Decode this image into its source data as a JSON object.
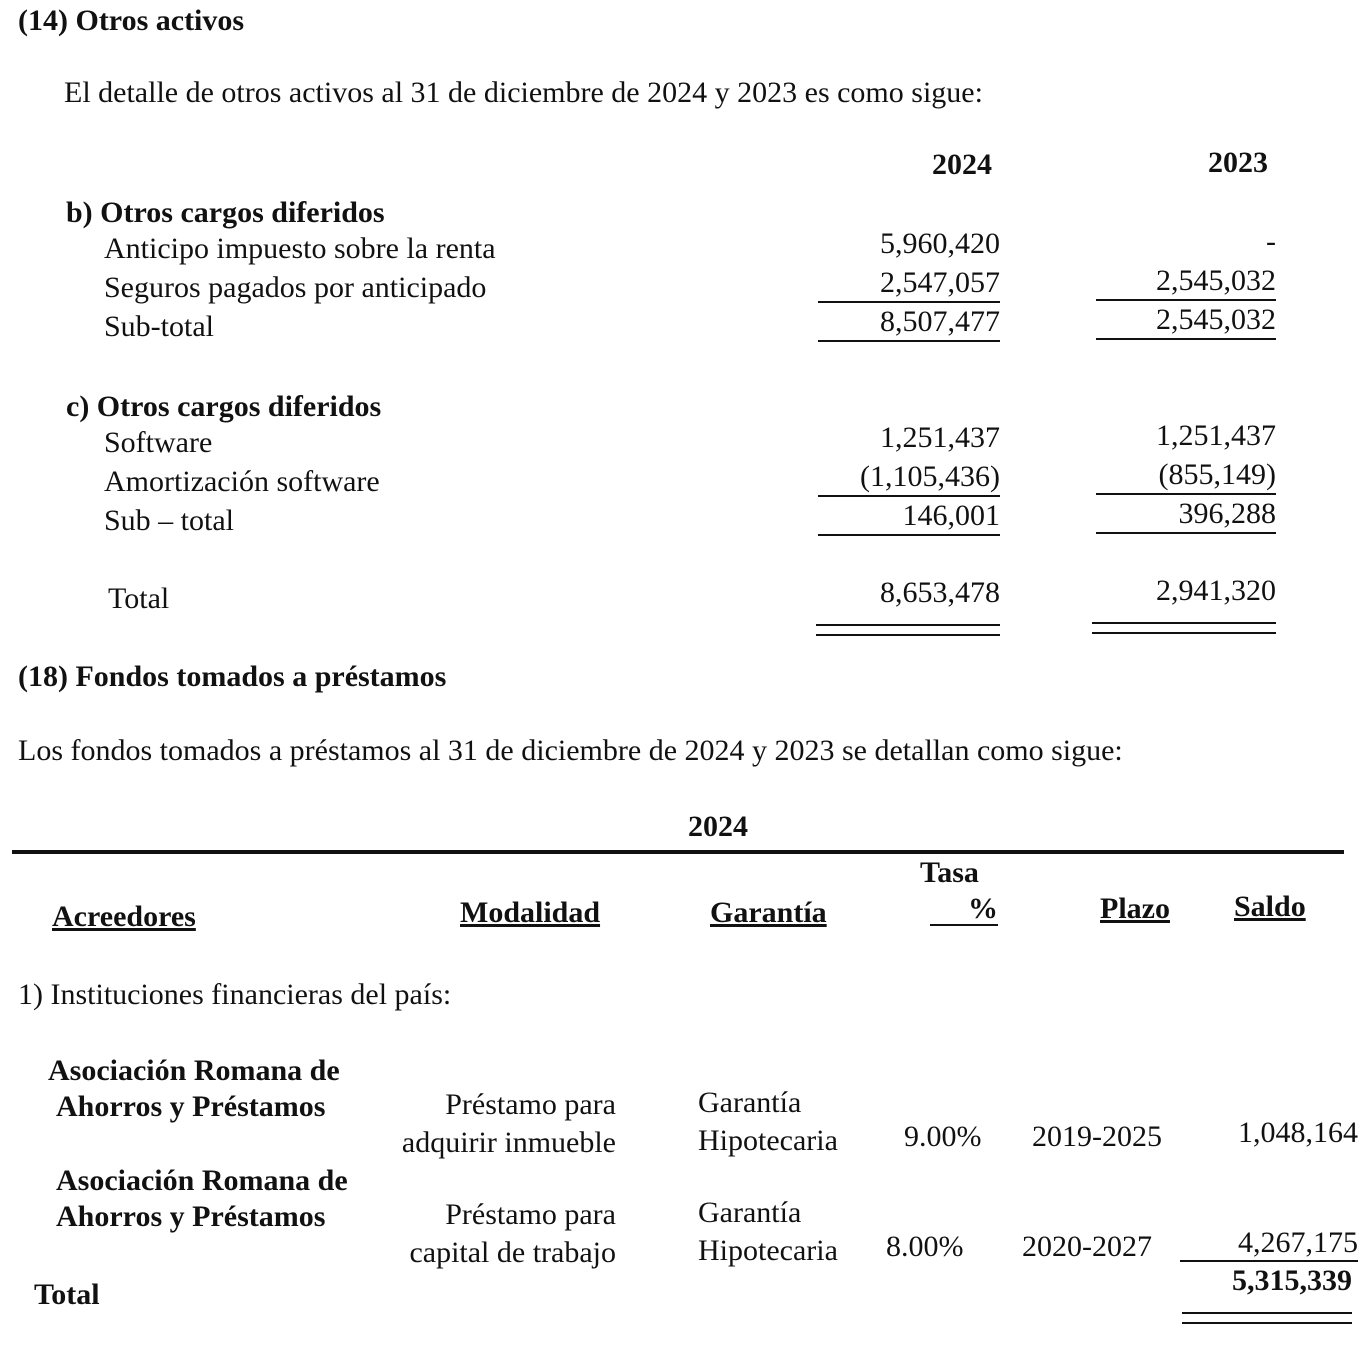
{
  "s14": {
    "title": "(14) Otros activos",
    "intro": "El detalle de otros activos al 31 de diciembre de 2024 y 2023 es como sigue:",
    "col_2024": "2024",
    "col_2023": "2023",
    "b_title": "b) Otros cargos diferidos",
    "b_rows": [
      {
        "label": "Anticipo impuesto sobre la renta",
        "v2024": "5,960,420",
        "v2023": "-"
      },
      {
        "label": "Seguros pagados por anticipado",
        "v2024": "2,547,057",
        "v2023": "2,545,032"
      },
      {
        "label": "Sub-total",
        "v2024": "8,507,477",
        "v2023": "2,545,032"
      }
    ],
    "c_title": "c) Otros cargos diferidos",
    "c_rows": [
      {
        "label": "Software",
        "v2024": "1,251,437",
        "v2023": "1,251,437"
      },
      {
        "label": "Amortización software",
        "v2024": "(1,105,436)",
        "v2023": "(855,149)"
      },
      {
        "label": "Sub – total",
        "v2024": "146,001",
        "v2023": "396,288"
      }
    ],
    "total": {
      "label": "Total",
      "v2024": "8,653,478",
      "v2023": "2,941,320"
    }
  },
  "s18": {
    "title": "(18) Fondos tomados a préstamos",
    "intro": "Los fondos tomados a préstamos al 31 de diciembre de 2024 y 2023 se detallan como sigue:",
    "year": "2024",
    "headers": {
      "acreedores": "Acreedores",
      "modalidad": "Modalidad",
      "garantia": "Garantía",
      "tasa1": "Tasa",
      "tasa2": "%",
      "plazo": "Plazo",
      "saldo": "Saldo"
    },
    "group": "1) Instituciones financieras del país:",
    "rows": [
      {
        "acr1": "Asociación Romana de",
        "acr2": "Ahorros y Préstamos",
        "mod1": "Préstamo para",
        "mod2": "adquirir inmueble",
        "gar1": "Garantía",
        "gar2": "Hipotecaria",
        "tasa": "9.00%",
        "plazo": "2019-2025",
        "saldo": "1,048,164"
      },
      {
        "acr1": "Asociación Romana de",
        "acr2": "Ahorros y Préstamos",
        "mod1": "Préstamo para",
        "mod2": "capital de trabajo",
        "gar1": "Garantía",
        "gar2": "Hipotecaria",
        "tasa": "8.00%",
        "plazo": "2020-2027",
        "saldo": "4,267,175"
      }
    ],
    "total": {
      "label": "Total",
      "saldo": "5,315,339"
    }
  }
}
